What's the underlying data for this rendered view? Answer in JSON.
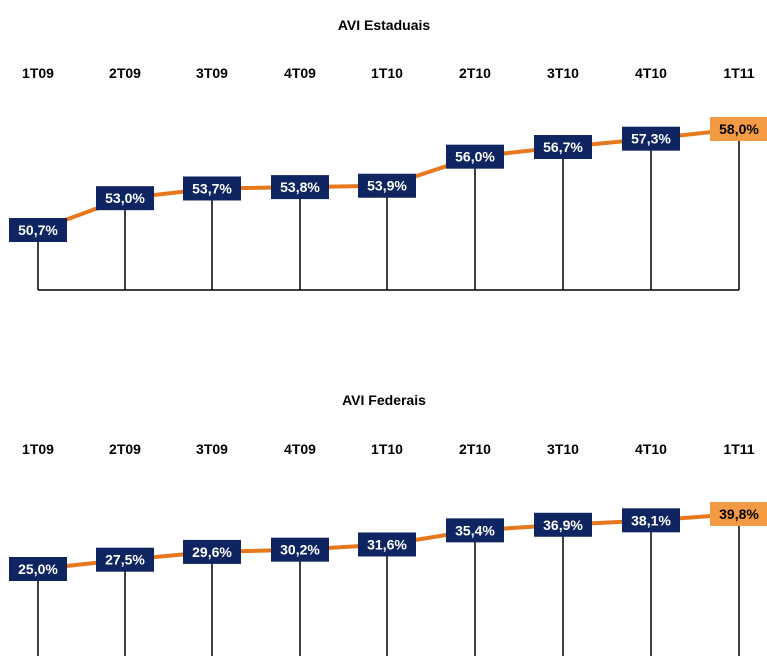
{
  "colors": {
    "line": "#E8781E",
    "label_box": "#0F2561",
    "last_label_box": "#F39A45",
    "label_text": "#ffffff",
    "last_label_text": "#000000",
    "stem": "#000000"
  },
  "chart_data": [
    {
      "type": "line",
      "title": "AVI Estaduais",
      "categories": [
        "1T09",
        "2T09",
        "3T09",
        "4T09",
        "1T10",
        "2T10",
        "3T10",
        "4T10",
        "1T11"
      ],
      "values": [
        50.7,
        53.0,
        53.7,
        53.8,
        53.9,
        56.0,
        56.7,
        57.3,
        58.0
      ],
      "data_labels": [
        "50,7%",
        "53,0%",
        "53,7%",
        "53,8%",
        "53,9%",
        "56,0%",
        "56,7%",
        "57,3%",
        "58,0%"
      ],
      "ylim": [
        44,
        60
      ],
      "grid": false,
      "legend": "none"
    },
    {
      "type": "line",
      "title": "AVI Federais",
      "categories": [
        "1T09",
        "2T09",
        "3T09",
        "4T09",
        "1T10",
        "2T10",
        "3T10",
        "4T10",
        "1T11"
      ],
      "values": [
        25.0,
        27.5,
        29.6,
        30.2,
        31.6,
        35.4,
        36.9,
        38.1,
        39.8
      ],
      "data_labels": [
        "25,0%",
        "27,5%",
        "29,6%",
        "30,2%",
        "31,6%",
        "35,4%",
        "36,9%",
        "38,1%",
        "39,8%"
      ],
      "ylim": [
        10,
        45
      ],
      "grid": false,
      "legend": "none"
    }
  ]
}
